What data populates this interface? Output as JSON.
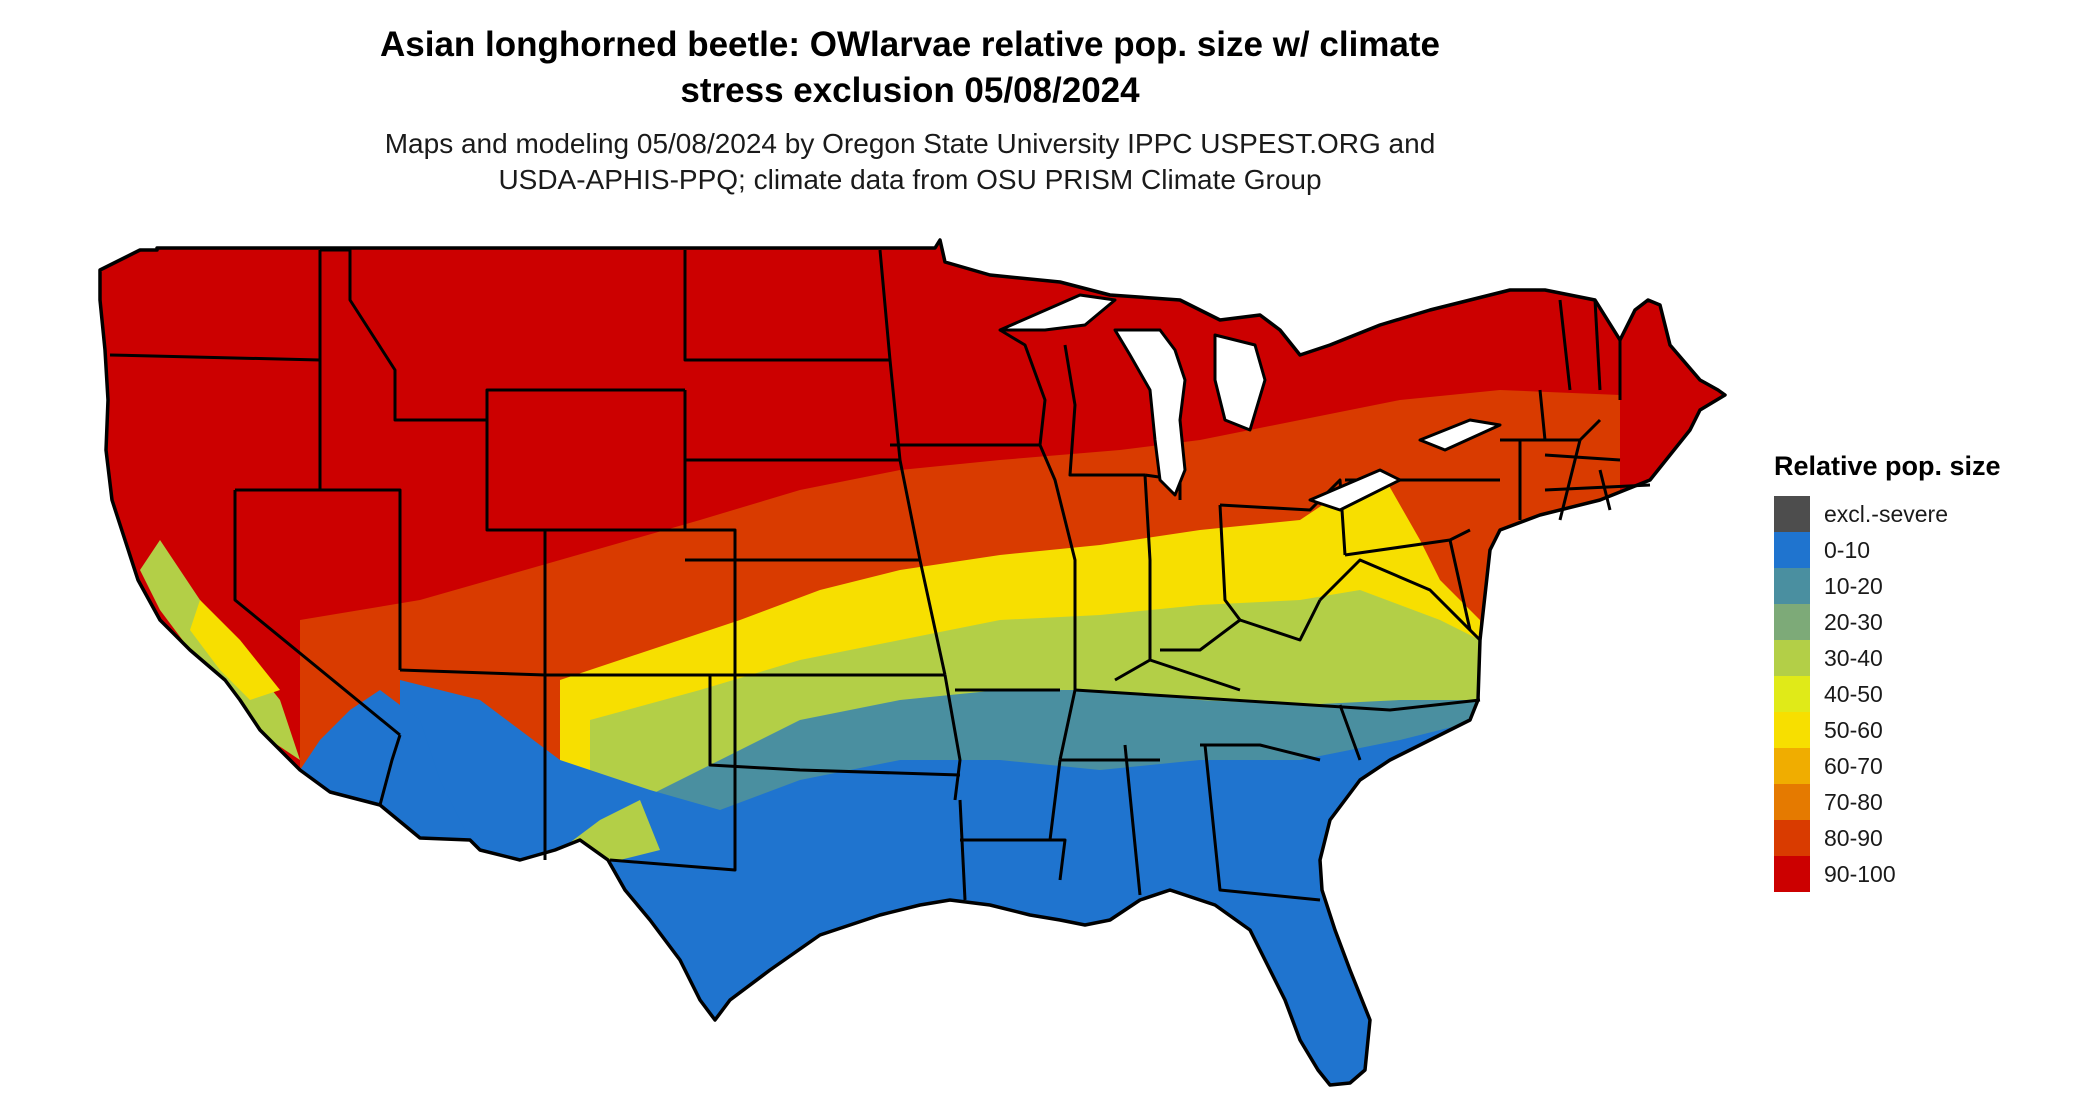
{
  "title": {
    "line1": "Asian longhorned beetle: OWlarvae relative pop. size w/ climate",
    "line2": "stress exclusion 05/08/2024"
  },
  "subtitle": {
    "line1": "Maps and modeling 05/08/2024 by Oregon State University IPPC USPEST.ORG and",
    "line2": "USDA-APHIS-PPQ; climate data from OSU PRISM Climate Group"
  },
  "legend": {
    "title": "Relative pop. size",
    "items": [
      {
        "label": "excl.-severe",
        "color": "#4d4d4d"
      },
      {
        "label": "0-10",
        "color": "#1f74cf"
      },
      {
        "label": "10-20",
        "color": "#4a8fa0"
      },
      {
        "label": "20-30",
        "color": "#7daa78"
      },
      {
        "label": "30-40",
        "color": "#b3cf47"
      },
      {
        "label": "40-50",
        "color": "#e0ea18"
      },
      {
        "label": "50-60",
        "color": "#f7df00"
      },
      {
        "label": "60-70",
        "color": "#f0ad00"
      },
      {
        "label": "70-80",
        "color": "#e57a00"
      },
      {
        "label": "80-90",
        "color": "#d93b00"
      },
      {
        "label": "90-100",
        "color": "#cc0000"
      }
    ]
  }
}
